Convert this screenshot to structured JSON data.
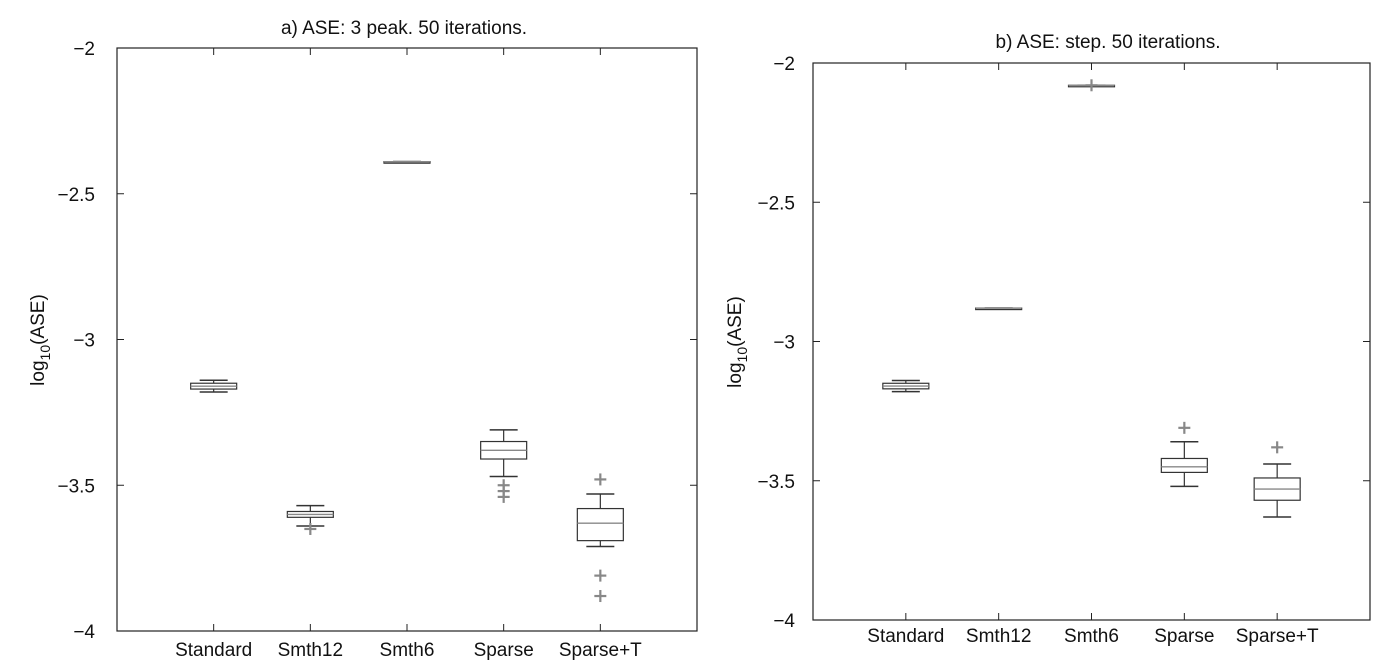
{
  "chart_data": [
    {
      "type": "box",
      "title": "a) ASE: 3 peak. 50 iterations.",
      "ylabel_base": "log",
      "ylabel_sub": "10",
      "ylabel_rest": "(ASE)",
      "ylim": [
        -4,
        -2
      ],
      "yticks": [
        -2,
        -2.5,
        -3,
        -3.5,
        -4
      ],
      "ytick_labels": [
        "−2",
        "−2.5",
        "−3",
        "−3.5",
        "−4"
      ],
      "categories": [
        "Standard",
        "Smth12",
        "Smth6",
        "Sparse",
        "Sparse+T"
      ],
      "boxes": [
        {
          "min": -3.18,
          "q1": -3.17,
          "median": -3.16,
          "q3": -3.15,
          "max": -3.14,
          "outliers": []
        },
        {
          "min": -3.64,
          "q1": -3.61,
          "median": -3.6,
          "q3": -3.59,
          "max": -3.57,
          "outliers": [
            -3.65
          ]
        },
        {
          "min": -2.39,
          "q1": -2.39,
          "median": -2.39,
          "q3": -2.39,
          "max": -2.39,
          "outliers": []
        },
        {
          "min": -3.47,
          "q1": -3.41,
          "median": -3.38,
          "q3": -3.35,
          "max": -3.31,
          "outliers": [
            -3.5,
            -3.52,
            -3.54
          ]
        },
        {
          "min": -3.71,
          "q1": -3.69,
          "median": -3.63,
          "q3": -3.58,
          "max": -3.53,
          "outliers": [
            -3.48,
            -3.81,
            -3.88
          ]
        }
      ],
      "grid": false
    },
    {
      "type": "box",
      "title": "b) ASE: step. 50 iterations.",
      "ylabel_base": "log",
      "ylabel_sub": "10",
      "ylabel_rest": "(ASE)",
      "ylim": [
        -4,
        -2
      ],
      "yticks": [
        -2,
        -2.5,
        -3,
        -3.5,
        -4
      ],
      "ytick_labels": [
        "−2",
        "−2.5",
        "−3",
        "−3.5",
        "−4"
      ],
      "categories": [
        "Standard",
        "Smth12",
        "Smth6",
        "Sparse",
        "Sparse+T"
      ],
      "boxes": [
        {
          "min": -3.18,
          "q1": -3.17,
          "median": -3.16,
          "q3": -3.15,
          "max": -3.14,
          "outliers": []
        },
        {
          "min": -2.88,
          "q1": -2.88,
          "median": -2.88,
          "q3": -2.88,
          "max": -2.88,
          "outliers": []
        },
        {
          "min": -2.08,
          "q1": -2.08,
          "median": -2.08,
          "q3": -2.08,
          "max": -2.08,
          "outliers": [
            -2.08
          ]
        },
        {
          "min": -3.52,
          "q1": -3.47,
          "median": -3.45,
          "q3": -3.42,
          "max": -3.36,
          "outliers": [
            -3.31
          ]
        },
        {
          "min": -3.63,
          "q1": -3.57,
          "median": -3.53,
          "q3": -3.49,
          "max": -3.44,
          "outliers": [
            -3.38
          ]
        }
      ],
      "grid": false
    }
  ]
}
